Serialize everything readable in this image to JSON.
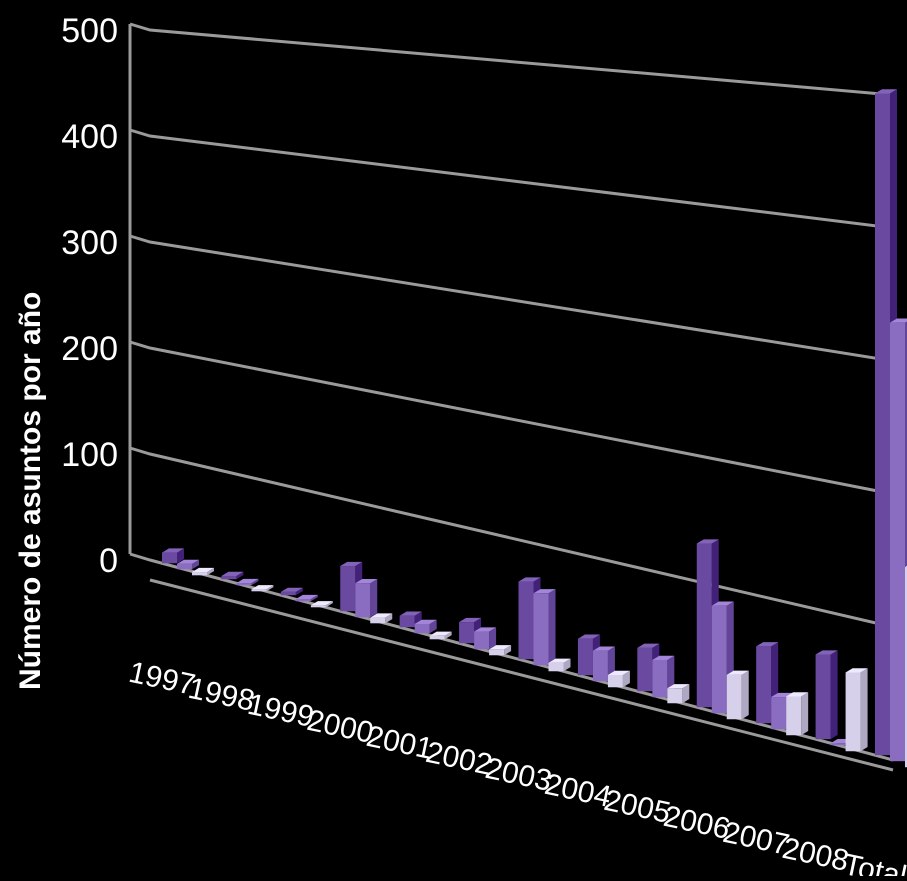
{
  "chart_data": {
    "type": "bar",
    "ylabel": "Número de asuntos  por año",
    "ylim": [
      0,
      500
    ],
    "yticks": [
      "0",
      "100",
      "200",
      "300",
      "400",
      "500"
    ],
    "grid": true,
    "categories": [
      "1997",
      "1998",
      "1999",
      "2000",
      "2001",
      "2002",
      "2003",
      "2004",
      "2005",
      "2006",
      "2007",
      "2008",
      "Total"
    ],
    "series": [
      {
        "color": "#6a4aa0",
        "values": [
          10,
          3,
          3,
          40,
          10,
          18,
          65,
          30,
          35,
          130,
          60,
          65,
          500
        ]
      },
      {
        "color": "#8a6cc0",
        "values": [
          5,
          2,
          2,
          30,
          8,
          15,
          60,
          25,
          30,
          85,
          25,
          0,
          330
        ]
      },
      {
        "color": "#d6d0ea",
        "values": [
          3,
          1,
          1,
          5,
          3,
          5,
          7,
          10,
          12,
          35,
          30,
          60,
          150
        ]
      }
    ]
  }
}
